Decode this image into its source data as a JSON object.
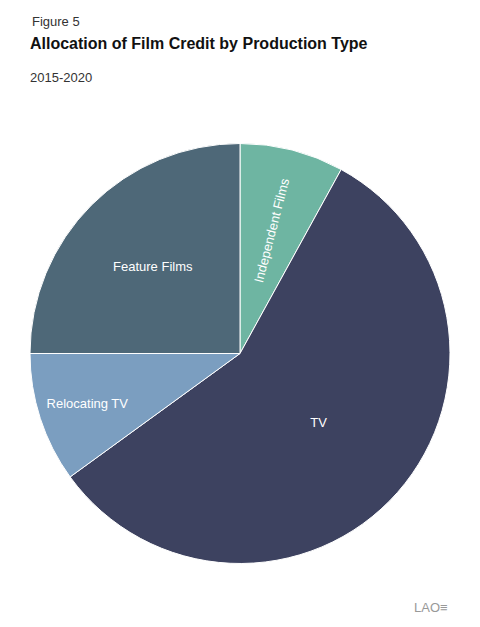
{
  "chart_data": {
    "type": "pie",
    "title": "Allocation of Film Credit by Production Type",
    "subtitle": "2015-2020",
    "annotations": [
      "Figure 5",
      "LAO≡"
    ],
    "categories": [
      "Independent Films",
      "TV",
      "Relocating TV",
      "Feature Films"
    ],
    "values": [
      8,
      57,
      10,
      25
    ],
    "colors": [
      "#6eb5a2",
      "#3d4260",
      "#7b9ec0",
      "#4e6878"
    ],
    "legend": false
  }
}
